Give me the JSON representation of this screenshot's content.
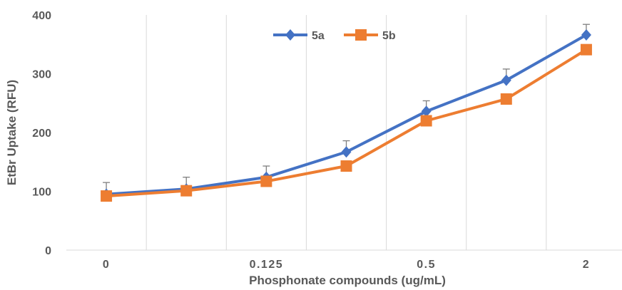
{
  "chart_data": {
    "type": "line",
    "title": "",
    "xlabel": "Phosphonate compounds (ug/mL)",
    "ylabel": "EtBr Uptake (RFU)",
    "x_tick_labels": [
      "0",
      "",
      "0.125",
      "",
      "0.5",
      "",
      "2"
    ],
    "yticks": [
      "0",
      "100",
      "200",
      "300",
      "400"
    ],
    "ylim": [
      0,
      400
    ],
    "grid": "vertical",
    "legend_position": "top-center",
    "series": [
      {
        "name": "5a",
        "color": "#4472C4",
        "marker": "diamond",
        "values": [
          95,
          104,
          124,
          167,
          236,
          289,
          366
        ],
        "error": [
          20,
          20,
          19,
          19,
          18,
          19,
          18
        ]
      },
      {
        "name": "5b",
        "color": "#ED7D31",
        "marker": "square",
        "values": [
          92,
          101,
          117,
          143,
          220,
          257,
          341
        ],
        "error": [
          0,
          0,
          0,
          0,
          0,
          0,
          0
        ]
      }
    ]
  }
}
